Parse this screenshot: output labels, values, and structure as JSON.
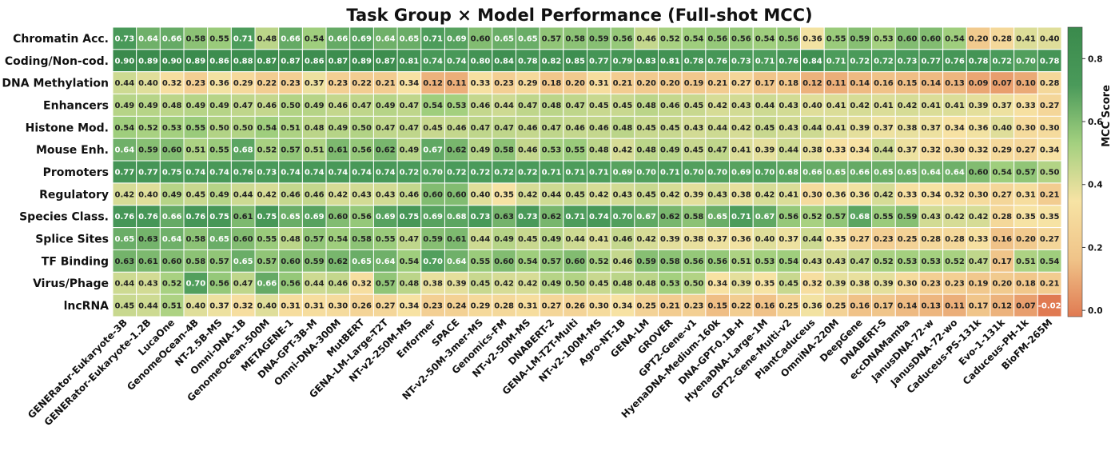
{
  "chart_data": {
    "type": "heatmap",
    "title": "Task Group × Model Performance (Full-shot MCC)",
    "colorbar_label": "MCC Score",
    "colorbar_ticks": [
      "0.0",
      "0.2",
      "0.4",
      "0.6",
      "0.8"
    ],
    "colorbar_tick_values": [
      0.0,
      0.2,
      0.4,
      0.6,
      0.8
    ],
    "color_range": [
      -0.02,
      0.9
    ],
    "colorscale": [
      "#e07a52",
      "#f0c489",
      "#f7e3a4",
      "#a3d07f",
      "#4a9a5a",
      "#3a8a4c"
    ],
    "rows": [
      "Chromatin Acc.",
      "Coding/Non-cod.",
      "DNA Methylation",
      "Enhancers",
      "Histone Mod.",
      "Mouse Enh.",
      "Promoters",
      "Regulatory",
      "Species Class.",
      "Splice Sites",
      "TF Binding",
      "Virus/Phage",
      "lncRNA"
    ],
    "columns": [
      "GENERator-Eukaryote-3B",
      "GENERator-Eukaryote-1.2B",
      "LucaOne",
      "GenomeOcean-4B",
      "NT-2.5B-MS",
      "Omni-DNA-1B",
      "GenomeOcean-500M",
      "METAGENE-1",
      "DNA-GPT-3B-M",
      "Omni-DNA-300M",
      "MutBERT",
      "GENA-LM-Large-T2T",
      "NT-v2-250M-MS",
      "Enformer",
      "SPACE",
      "NT-v2-50M-3mer-MS",
      "Genomics-FM",
      "NT-v2-50M-MS",
      "DNABERT-2",
      "GENA-LM-T2T-Multi",
      "NT-v2-100M-MS",
      "Agro-NT-1B",
      "GENA-LM",
      "GROVER",
      "GPT2-Gene-v1",
      "HyenaDNA-Medium-160k",
      "DNA-GPT-0.1B-H",
      "HyenaDNA-Large-1M",
      "GPT2-Gene-Multi-v2",
      "PlantCaduceus",
      "OmniNA-220M",
      "DeepGene",
      "DNABERT-S",
      "eccDNAMamba",
      "JanusDNA-72-w",
      "JanusDNA-72-wo",
      "Caduceus-PS-131k",
      "Evo-1-131k",
      "Caduceus-PH-1k",
      "BioFM-265M"
    ],
    "values": [
      [
        0.73,
        0.64,
        0.66,
        0.58,
        0.55,
        0.71,
        0.48,
        0.66,
        0.54,
        0.66,
        0.69,
        0.64,
        0.65,
        0.71,
        0.69,
        0.6,
        0.65,
        0.65,
        0.57,
        0.58,
        0.59,
        0.56,
        0.46,
        0.52,
        0.54,
        0.56,
        0.56,
        0.54,
        0.56,
        0.36,
        0.55,
        0.59,
        0.53,
        0.6,
        0.6,
        0.54,
        0.2,
        0.28,
        0.41,
        0.4
      ],
      [
        0.9,
        0.89,
        0.9,
        0.89,
        0.86,
        0.88,
        0.87,
        0.87,
        0.86,
        0.87,
        0.89,
        0.87,
        0.81,
        0.74,
        0.74,
        0.8,
        0.84,
        0.78,
        0.82,
        0.85,
        0.77,
        0.79,
        0.83,
        0.81,
        0.78,
        0.76,
        0.73,
        0.71,
        0.76,
        0.84,
        0.71,
        0.72,
        0.72,
        0.73,
        0.77,
        0.76,
        0.78,
        0.72,
        0.7,
        0.78
      ],
      [
        0.44,
        0.4,
        0.32,
        0.23,
        0.36,
        0.29,
        0.22,
        0.23,
        0.37,
        0.23,
        0.22,
        0.21,
        0.34,
        0.12,
        0.11,
        0.33,
        0.23,
        0.29,
        0.18,
        0.2,
        0.31,
        0.21,
        0.2,
        0.2,
        0.19,
        0.21,
        0.27,
        0.17,
        0.18,
        0.12,
        0.11,
        0.14,
        0.16,
        0.15,
        0.14,
        0.13,
        0.09,
        0.07,
        0.1,
        0.28
      ],
      [
        0.49,
        0.49,
        0.48,
        0.49,
        0.49,
        0.47,
        0.46,
        0.5,
        0.49,
        0.46,
        0.47,
        0.49,
        0.47,
        0.54,
        0.53,
        0.46,
        0.44,
        0.47,
        0.48,
        0.47,
        0.45,
        0.45,
        0.48,
        0.46,
        0.45,
        0.42,
        0.43,
        0.44,
        0.43,
        0.4,
        0.41,
        0.42,
        0.41,
        0.42,
        0.41,
        0.41,
        0.39,
        0.37,
        0.33,
        0.27
      ],
      [
        0.54,
        0.52,
        0.53,
        0.55,
        0.5,
        0.5,
        0.54,
        0.51,
        0.48,
        0.49,
        0.5,
        0.47,
        0.47,
        0.45,
        0.46,
        0.47,
        0.47,
        0.46,
        0.47,
        0.46,
        0.46,
        0.48,
        0.45,
        0.45,
        0.43,
        0.44,
        0.42,
        0.45,
        0.43,
        0.44,
        0.41,
        0.39,
        0.37,
        0.38,
        0.37,
        0.34,
        0.36,
        0.4,
        0.3,
        0.3
      ],
      [
        0.64,
        0.59,
        0.6,
        0.51,
        0.55,
        0.68,
        0.52,
        0.57,
        0.51,
        0.61,
        0.56,
        0.62,
        0.49,
        0.67,
        0.62,
        0.49,
        0.58,
        0.46,
        0.53,
        0.55,
        0.48,
        0.42,
        0.48,
        0.49,
        0.45,
        0.47,
        0.41,
        0.39,
        0.44,
        0.38,
        0.33,
        0.34,
        0.44,
        0.37,
        0.32,
        0.3,
        0.32,
        0.29,
        0.27,
        0.34
      ],
      [
        0.77,
        0.77,
        0.75,
        0.74,
        0.74,
        0.76,
        0.73,
        0.74,
        0.74,
        0.74,
        0.74,
        0.74,
        0.72,
        0.7,
        0.72,
        0.72,
        0.72,
        0.72,
        0.71,
        0.71,
        0.71,
        0.69,
        0.7,
        0.71,
        0.7,
        0.7,
        0.69,
        0.7,
        0.68,
        0.66,
        0.65,
        0.66,
        0.65,
        0.65,
        0.64,
        0.64,
        0.6,
        0.54,
        0.57,
        0.5
      ],
      [
        0.42,
        0.4,
        0.49,
        0.45,
        0.49,
        0.44,
        0.42,
        0.46,
        0.46,
        0.42,
        0.43,
        0.43,
        0.46,
        0.6,
        0.6,
        0.4,
        0.35,
        0.42,
        0.44,
        0.45,
        0.42,
        0.43,
        0.45,
        0.42,
        0.39,
        0.43,
        0.38,
        0.42,
        0.41,
        0.3,
        0.36,
        0.36,
        0.42,
        0.33,
        0.34,
        0.32,
        0.3,
        0.27,
        0.31,
        0.21
      ],
      [
        0.76,
        0.76,
        0.66,
        0.76,
        0.75,
        0.61,
        0.75,
        0.65,
        0.69,
        0.6,
        0.56,
        0.69,
        0.75,
        0.69,
        0.68,
        0.73,
        0.63,
        0.73,
        0.62,
        0.71,
        0.74,
        0.7,
        0.67,
        0.62,
        0.58,
        0.65,
        0.71,
        0.67,
        0.56,
        0.52,
        0.57,
        0.68,
        0.55,
        0.59,
        0.43,
        0.42,
        0.42,
        0.28,
        0.35,
        0.35
      ],
      [
        0.65,
        0.63,
        0.64,
        0.58,
        0.65,
        0.6,
        0.55,
        0.48,
        0.57,
        0.54,
        0.58,
        0.55,
        0.47,
        0.59,
        0.61,
        0.44,
        0.49,
        0.45,
        0.49,
        0.44,
        0.41,
        0.46,
        0.42,
        0.39,
        0.38,
        0.37,
        0.36,
        0.4,
        0.37,
        0.44,
        0.35,
        0.27,
        0.23,
        0.25,
        0.28,
        0.28,
        0.33,
        0.16,
        0.2,
        0.27
      ],
      [
        0.63,
        0.61,
        0.6,
        0.58,
        0.57,
        0.65,
        0.57,
        0.6,
        0.59,
        0.62,
        0.65,
        0.64,
        0.54,
        0.7,
        0.64,
        0.55,
        0.6,
        0.54,
        0.57,
        0.6,
        0.52,
        0.46,
        0.59,
        0.58,
        0.56,
        0.56,
        0.51,
        0.53,
        0.54,
        0.43,
        0.43,
        0.47,
        0.52,
        0.53,
        0.53,
        0.52,
        0.47,
        0.17,
        0.51,
        0.54
      ],
      [
        0.44,
        0.43,
        0.52,
        0.7,
        0.56,
        0.47,
        0.66,
        0.56,
        0.44,
        0.46,
        0.32,
        0.57,
        0.48,
        0.38,
        0.39,
        0.45,
        0.42,
        0.42,
        0.49,
        0.5,
        0.45,
        0.48,
        0.48,
        0.53,
        0.5,
        0.34,
        0.39,
        0.35,
        0.45,
        0.32,
        0.39,
        0.38,
        0.39,
        0.3,
        0.23,
        0.23,
        0.19,
        0.2,
        0.18,
        0.21
      ],
      [
        0.45,
        0.44,
        0.51,
        0.4,
        0.37,
        0.32,
        0.4,
        0.31,
        0.31,
        0.3,
        0.26,
        0.27,
        0.34,
        0.23,
        0.24,
        0.29,
        0.28,
        0.31,
        0.27,
        0.26,
        0.3,
        0.34,
        0.25,
        0.21,
        0.23,
        0.15,
        0.22,
        0.16,
        0.25,
        0.36,
        0.25,
        0.16,
        0.17,
        0.14,
        0.13,
        0.11,
        0.17,
        0.12,
        0.07,
        -0.02
      ]
    ]
  }
}
